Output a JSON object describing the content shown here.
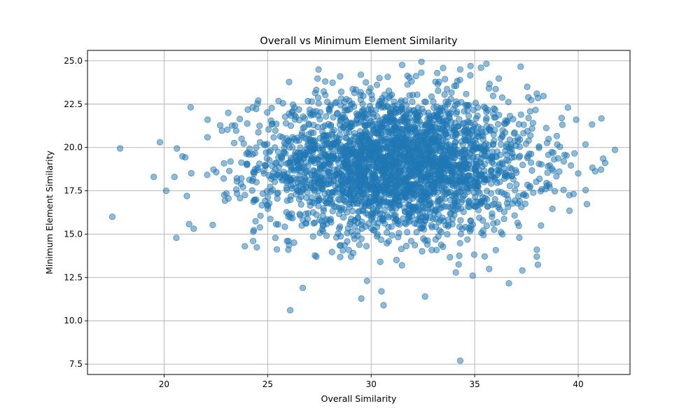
{
  "chart_data": {
    "type": "scatter",
    "title": "Overall vs Minimum Element Similarity",
    "xlabel": "Overall Similarity",
    "ylabel": "Minimum Element Similarity",
    "xlim": [
      16.3,
      42.5
    ],
    "ylim": [
      6.9,
      25.6
    ],
    "xticks": [
      20,
      25,
      30,
      35,
      40
    ],
    "yticks": [
      7.5,
      10.0,
      12.5,
      15.0,
      17.5,
      20.0,
      22.5,
      25.0
    ],
    "xtick_labels": [
      "20",
      "25",
      "30",
      "35",
      "40"
    ],
    "ytick_labels": [
      "7.5",
      "10.0",
      "12.5",
      "15.0",
      "17.5",
      "20.0",
      "22.5",
      "25.0"
    ],
    "grid": true,
    "color": "#1f77b4",
    "point_count": 3000,
    "distribution": {
      "x_mean": 31.2,
      "x_std": 3.3,
      "y_mean": 19.0,
      "y_std": 2.0
    },
    "notable_points": [
      {
        "x": 17.5,
        "y": 16.0
      },
      {
        "x": 19.8,
        "y": 20.3
      },
      {
        "x": 19.5,
        "y": 18.3
      },
      {
        "x": 20.1,
        "y": 17.5
      },
      {
        "x": 20.5,
        "y": 18.3
      },
      {
        "x": 21.1,
        "y": 17.2
      },
      {
        "x": 41.3,
        "y": 19.1
      },
      {
        "x": 40.0,
        "y": 18.5
      },
      {
        "x": 39.9,
        "y": 21.6
      },
      {
        "x": 39.5,
        "y": 22.3
      },
      {
        "x": 34.3,
        "y": 7.7
      },
      {
        "x": 30.6,
        "y": 10.9
      },
      {
        "x": 30.5,
        "y": 11.7
      },
      {
        "x": 26.7,
        "y": 11.9
      },
      {
        "x": 32.6,
        "y": 11.4
      },
      {
        "x": 29.8,
        "y": 12.3
      },
      {
        "x": 28.5,
        "y": 24.1
      },
      {
        "x": 29.5,
        "y": 24.2
      },
      {
        "x": 30.4,
        "y": 24.0
      },
      {
        "x": 34.8,
        "y": 24.7
      },
      {
        "x": 35.3,
        "y": 24.6
      },
      {
        "x": 34.3,
        "y": 24.5
      },
      {
        "x": 37.3,
        "y": 12.9
      },
      {
        "x": 34.9,
        "y": 12.6
      },
      {
        "x": 38.0,
        "y": 13.7
      },
      {
        "x": 38.0,
        "y": 23.1
      },
      {
        "x": 38.0,
        "y": 14.1
      },
      {
        "x": 38.2,
        "y": 15.5
      },
      {
        "x": 39.2,
        "y": 21.7
      },
      {
        "x": 22.1,
        "y": 21.6
      },
      {
        "x": 23.1,
        "y": 22.0
      },
      {
        "x": 23.9,
        "y": 14.3
      },
      {
        "x": 24.3,
        "y": 14.6
      },
      {
        "x": 26.0,
        "y": 14.1
      },
      {
        "x": 26.3,
        "y": 22.3
      }
    ]
  }
}
